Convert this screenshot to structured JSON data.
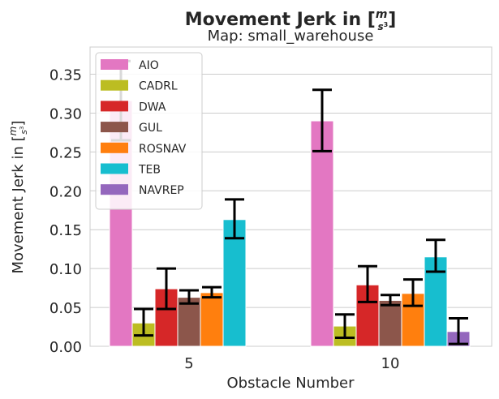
{
  "chart_data": {
    "type": "bar",
    "title_main": "Movement Jerk in [",
    "title_unit_num": "m",
    "title_unit_den": "s",
    "title_unit_exp": "3",
    "title_close": "]",
    "subtitle": "Map: small_warehouse",
    "xlabel": "Obstacle Number",
    "ylabel": "Movement Jerk in [",
    "ylabel_unit_num": "m",
    "ylabel_unit_den": "s",
    "ylabel_unit_exp": "3",
    "ylabel_close": "]",
    "categories": [
      "5",
      "10"
    ],
    "ylim": [
      0,
      0.385
    ],
    "yticks": [
      "0.00",
      "0.05",
      "0.10",
      "0.15",
      "0.20",
      "0.25",
      "0.30",
      "0.35"
    ],
    "grid": true,
    "legend_position": "top-left",
    "series": [
      {
        "name": "AIO",
        "color": "#e377c2",
        "values": [
          0.316,
          0.29
        ],
        "err_low": [
          0.265,
          0.251
        ],
        "err_high": [
          0.367,
          0.33
        ]
      },
      {
        "name": "CADRL",
        "color": "#bcbd22",
        "values": [
          0.03,
          0.026
        ],
        "err_low": [
          0.014,
          0.011
        ],
        "err_high": [
          0.048,
          0.041
        ]
      },
      {
        "name": "DWA",
        "color": "#d62728",
        "values": [
          0.074,
          0.079
        ],
        "err_low": [
          0.048,
          0.057
        ],
        "err_high": [
          0.1,
          0.103
        ]
      },
      {
        "name": "GUL",
        "color": "#8c564b",
        "values": [
          0.063,
          0.059
        ],
        "err_low": [
          0.055,
          0.053
        ],
        "err_high": [
          0.072,
          0.066
        ]
      },
      {
        "name": "ROSNAV",
        "color": "#ff7f0e",
        "values": [
          0.069,
          0.068
        ],
        "err_low": [
          0.063,
          0.052
        ],
        "err_high": [
          0.076,
          0.086
        ]
      },
      {
        "name": "TEB",
        "color": "#17becf",
        "values": [
          0.163,
          0.115
        ],
        "err_low": [
          0.139,
          0.096
        ],
        "err_high": [
          0.189,
          0.137
        ]
      },
      {
        "name": "NAVREP",
        "color": "#9467bd",
        "values": [
          null,
          0.019
        ],
        "err_low": [
          null,
          0.003
        ],
        "err_high": [
          null,
          0.036
        ]
      }
    ]
  }
}
